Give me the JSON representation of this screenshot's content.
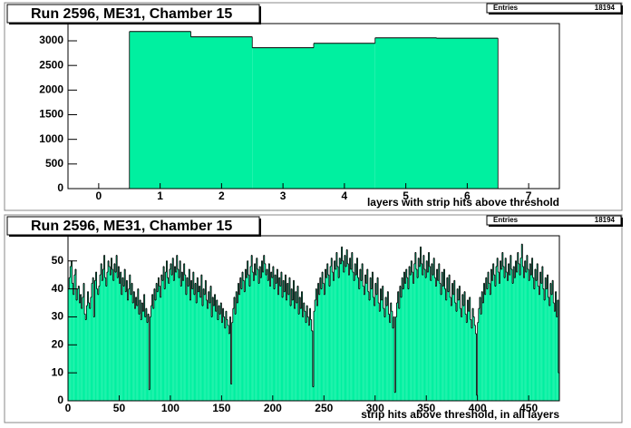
{
  "chart_data": [
    {
      "type": "histogram",
      "title": "Run 2596, ME31, Chamber 15",
      "stats_label": "Entries",
      "entries": 18194,
      "x_label": "layers with strip hits above threshold",
      "color": "#00f0a0",
      "bins": [
        -0.5,
        0.5,
        1.5,
        2.5,
        3.5,
        4.5,
        5.5,
        6.5,
        7.5
      ],
      "counts": [
        0,
        3190,
        3080,
        2860,
        2950,
        3060,
        3054,
        0
      ],
      "xlim": [
        -0.5,
        7.5
      ],
      "ylim": [
        0,
        3350
      ],
      "xticks": [
        0,
        1,
        2,
        3,
        4,
        5,
        6,
        7
      ],
      "yticks": [
        0,
        500,
        1000,
        1500,
        2000,
        2500,
        3000
      ]
    },
    {
      "type": "histogram",
      "title": "Run 2596, ME31, Chamber 15",
      "stats_label": "Entries",
      "entries": 18194,
      "x_label": "strip hits above threshold, in all layers",
      "color": "#00f0a0",
      "bins": [
        0,
        1,
        2,
        3,
        4,
        5,
        6,
        7,
        8,
        9,
        10,
        11,
        12,
        13,
        14,
        15,
        16,
        17,
        18,
        19,
        20,
        21,
        22,
        23,
        24,
        25,
        26,
        27,
        28,
        29,
        30,
        31,
        32,
        33,
        34,
        35,
        36,
        37,
        38,
        39,
        40,
        41,
        42,
        43,
        44,
        45,
        46,
        47,
        48,
        49,
        50,
        51,
        52,
        53,
        54,
        55,
        56,
        57,
        58,
        59,
        60,
        61,
        62,
        63,
        64,
        65,
        66,
        67,
        68,
        69,
        70,
        71,
        72,
        73,
        74,
        75,
        76,
        77,
        78,
        79,
        80,
        81,
        82,
        83,
        84,
        85,
        86,
        87,
        88,
        89,
        90,
        91,
        92,
        93,
        94,
        95,
        96,
        97,
        98,
        99,
        100,
        101,
        102,
        103,
        104,
        105,
        106,
        107,
        108,
        109,
        110,
        111,
        112,
        113,
        114,
        115,
        116,
        117,
        118,
        119,
        120,
        121,
        122,
        123,
        124,
        125,
        126,
        127,
        128,
        129,
        130,
        131,
        132,
        133,
        134,
        135,
        136,
        137,
        138,
        139,
        140,
        141,
        142,
        143,
        144,
        145,
        146,
        147,
        148,
        149,
        150,
        151,
        152,
        153,
        154,
        155,
        156,
        157,
        158,
        159,
        160,
        161,
        162,
        163,
        164,
        165,
        166,
        167,
        168,
        169,
        170,
        171,
        172,
        173,
        174,
        175,
        176,
        177,
        178,
        179,
        180,
        181,
        182,
        183,
        184,
        185,
        186,
        187,
        188,
        189,
        190,
        191,
        192,
        193,
        194,
        195,
        196,
        197,
        198,
        199,
        200,
        201,
        202,
        203,
        204,
        205,
        206,
        207,
        208,
        209,
        210,
        211,
        212,
        213,
        214,
        215,
        216,
        217,
        218,
        219,
        220,
        221,
        222,
        223,
        224,
        225,
        226,
        227,
        228,
        229,
        230,
        231,
        232,
        233,
        234,
        235,
        236,
        237,
        238,
        239,
        240,
        241,
        242,
        243,
        244,
        245,
        246,
        247,
        248,
        249,
        250,
        251,
        252,
        253,
        254,
        255,
        256,
        257,
        258,
        259,
        260,
        261,
        262,
        263,
        264,
        265,
        266,
        267,
        268,
        269,
        270,
        271,
        272,
        273,
        274,
        275,
        276,
        277,
        278,
        279,
        280,
        281,
        282,
        283,
        284,
        285,
        286,
        287,
        288,
        289,
        290,
        291,
        292,
        293,
        294,
        295,
        296,
        297,
        298,
        299,
        300,
        301,
        302,
        303,
        304,
        305,
        306,
        307,
        308,
        309,
        310,
        311,
        312,
        313,
        314,
        315,
        316,
        317,
        318,
        319,
        320,
        321,
        322,
        323,
        324,
        325,
        326,
        327,
        328,
        329,
        330,
        331,
        332,
        333,
        334,
        335,
        336,
        337,
        338,
        339,
        340,
        341,
        342,
        343,
        344,
        345,
        346,
        347,
        348,
        349,
        350,
        351,
        352,
        353,
        354,
        355,
        356,
        357,
        358,
        359,
        360,
        361,
        362,
        363,
        364,
        365,
        366,
        367,
        368,
        369,
        370,
        371,
        372,
        373,
        374,
        375,
        376,
        377,
        378,
        379,
        380,
        381,
        382,
        383,
        384,
        385,
        386,
        387,
        388,
        389,
        390,
        391,
        392,
        393,
        394,
        395,
        396,
        397,
        398,
        399,
        400,
        401,
        402,
        403,
        404,
        405,
        406,
        407,
        408,
        409,
        410,
        411,
        412,
        413,
        414,
        415,
        416,
        417,
        418,
        419,
        420,
        421,
        422,
        423,
        424,
        425,
        426,
        427,
        428,
        429,
        430,
        431,
        432,
        433,
        434,
        435,
        436,
        437,
        438,
        439,
        440,
        441,
        442,
        443,
        444,
        445,
        446,
        447,
        448,
        449,
        450,
        451,
        452,
        453,
        454,
        455,
        456,
        457,
        458,
        459,
        460,
        461,
        462,
        463,
        464,
        465,
        466,
        467,
        468,
        469,
        470,
        471,
        472,
        473,
        474,
        475,
        476,
        477,
        478,
        479,
        480
      ],
      "counts": [
        40,
        44,
        48,
        50,
        42,
        38,
        45,
        47,
        36,
        40,
        41,
        35,
        38,
        33,
        37,
        42,
        31,
        29,
        34,
        39,
        35,
        33,
        37,
        42,
        44,
        30,
        43,
        46,
        40,
        38,
        41,
        45,
        49,
        43,
        47,
        52,
        44,
        41,
        46,
        50,
        48,
        45,
        51,
        47,
        43,
        49,
        46,
        52,
        44,
        48,
        42,
        46,
        38,
        44,
        41,
        47,
        39,
        43,
        36,
        40,
        45,
        38,
        42,
        35,
        39,
        33,
        37,
        34,
        40,
        31,
        36,
        29,
        35,
        32,
        38,
        30,
        33,
        28,
        31,
        4,
        30,
        34,
        38,
        33,
        40,
        36,
        42,
        39,
        44,
        41,
        37,
        45,
        43,
        48,
        40,
        46,
        50,
        44,
        42,
        47,
        49,
        45,
        51,
        43,
        48,
        46,
        52,
        47,
        44,
        50,
        41,
        46,
        43,
        49,
        45,
        38,
        44,
        41,
        47,
        36,
        43,
        40,
        46,
        38,
        42,
        35,
        44,
        39,
        41,
        37,
        45,
        34,
        40,
        38,
        43,
        36,
        33,
        39,
        35,
        41,
        30,
        37,
        34,
        38,
        32,
        36,
        29,
        34,
        31,
        35,
        28,
        33,
        30,
        26,
        32,
        29,
        27,
        24,
        30,
        6,
        28,
        33,
        37,
        31,
        39,
        35,
        42,
        38,
        44,
        40,
        46,
        43,
        39,
        47,
        44,
        50,
        45,
        41,
        48,
        52,
        46,
        43,
        49,
        45,
        51,
        47,
        42,
        48,
        44,
        50,
        46,
        52,
        49,
        45,
        47,
        43,
        49,
        41,
        46,
        44,
        48,
        40,
        45,
        42,
        47,
        38,
        44,
        41,
        46,
        37,
        43,
        39,
        45,
        36,
        42,
        38,
        44,
        34,
        40,
        36,
        43,
        33,
        39,
        35,
        41,
        31,
        37,
        33,
        39,
        30,
        35,
        32,
        28,
        34,
        30,
        27,
        33,
        29,
        25,
        5,
        32,
        36,
        40,
        34,
        42,
        38,
        44,
        40,
        46,
        42,
        38,
        47,
        44,
        49,
        45,
        41,
        48,
        51,
        46,
        43,
        50,
        47,
        53,
        48,
        44,
        51,
        49,
        55,
        50,
        46,
        52,
        48,
        54,
        49,
        45,
        51,
        47,
        53,
        46,
        43,
        49,
        45,
        51,
        44,
        40,
        47,
        43,
        49,
        41,
        38,
        45,
        42,
        47,
        39,
        36,
        44,
        40,
        46,
        37,
        34,
        42,
        38,
        44,
        35,
        32,
        40,
        36,
        41,
        33,
        30,
        37,
        34,
        39,
        31,
        28,
        35,
        32,
        26,
        30,
        3,
        30,
        35,
        39,
        33,
        41,
        37,
        44,
        40,
        46,
        42,
        47,
        44,
        40,
        48,
        45,
        50,
        46,
        42,
        49,
        53,
        47,
        44,
        51,
        48,
        55,
        49,
        45,
        52,
        47,
        44,
        50,
        46,
        53,
        48,
        43,
        49,
        45,
        51,
        44,
        41,
        47,
        43,
        49,
        42,
        38,
        46,
        41,
        47,
        40,
        36,
        44,
        39,
        45,
        37,
        34,
        42,
        38,
        43,
        35,
        32,
        40,
        36,
        41,
        33,
        30,
        38,
        34,
        39,
        31,
        28,
        36,
        32,
        37,
        29,
        26,
        33,
        30,
        27,
        24,
        2,
        28,
        33,
        37,
        31,
        39,
        35,
        42,
        38,
        44,
        40,
        46,
        42,
        38,
        47,
        43,
        49,
        45,
        41,
        48,
        51,
        46,
        42,
        50,
        47,
        53,
        48,
        44,
        51,
        46,
        43,
        49,
        45,
        52,
        47,
        42,
        48,
        44,
        50,
        46,
        53,
        49,
        45,
        51,
        56,
        48,
        44,
        50,
        46,
        52,
        47,
        43,
        49,
        45,
        51,
        44,
        40,
        47,
        43,
        49,
        41,
        38,
        46,
        42,
        48,
        40,
        36,
        44,
        40,
        45,
        37,
        34,
        42,
        38,
        43,
        35,
        32,
        39,
        30,
        36,
        10
      ],
      "xlim": [
        0,
        480
      ],
      "ylim": [
        0,
        59
      ],
      "xticks": [
        0,
        50,
        100,
        150,
        200,
        250,
        300,
        350,
        400,
        450
      ],
      "yticks": [
        0,
        10,
        20,
        30,
        40,
        50
      ]
    }
  ]
}
